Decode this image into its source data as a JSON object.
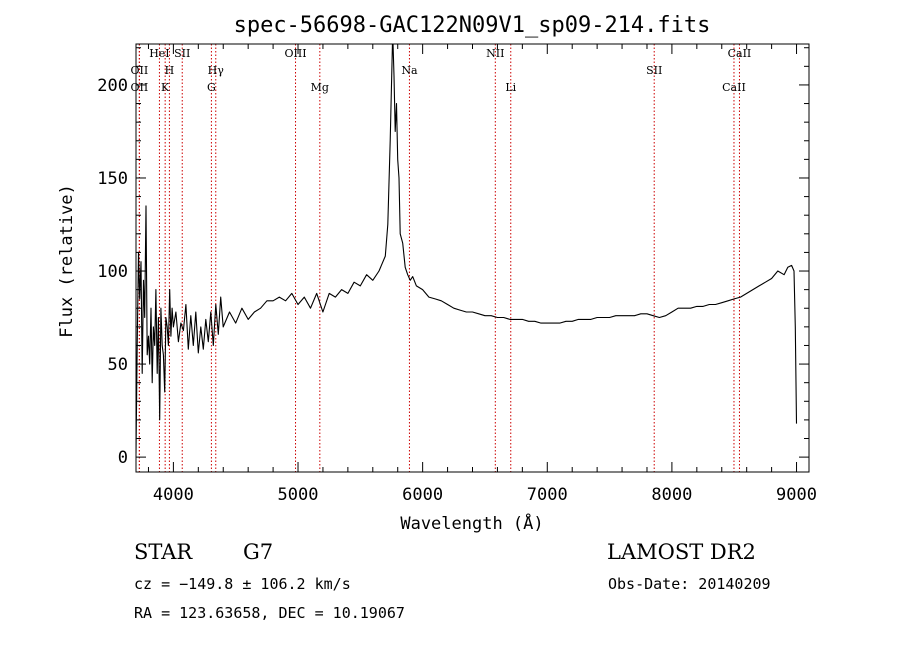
{
  "chart_data": {
    "type": "line",
    "title": "spec-56698-GAC122N09V1_sp09-214.fits",
    "xlabel": "Wavelength (Å)",
    "ylabel": "Flux (relative)",
    "xlim": [
      3700,
      9100
    ],
    "ylim": [
      -8,
      222
    ],
    "xticks": [
      4000,
      5000,
      6000,
      7000,
      8000,
      9000
    ],
    "yticks": [
      0,
      50,
      100,
      150,
      200
    ],
    "grid": false,
    "series": [
      {
        "x": [
          3700,
          3710,
          3720,
          3730,
          3740,
          3750,
          3760,
          3770,
          3780,
          3790,
          3800,
          3810,
          3820,
          3830,
          3840,
          3850,
          3860,
          3870,
          3880,
          3890,
          3900,
          3910,
          3920,
          3930,
          3940,
          3950,
          3960,
          3970,
          3980,
          3990,
          4000,
          4020,
          4040,
          4060,
          4080,
          4100,
          4120,
          4140,
          4160,
          4180,
          4200,
          4220,
          4240,
          4260,
          4280,
          4300,
          4320,
          4340,
          4360,
          4380,
          4400,
          4450,
          4500,
          4550,
          4600,
          4650,
          4700,
          4750,
          4800,
          4850,
          4900,
          4950,
          5000,
          5050,
          5100,
          5150,
          5200,
          5250,
          5300,
          5350,
          5400,
          5450,
          5500,
          5550,
          5600,
          5650,
          5700,
          5720,
          5740,
          5760,
          5770,
          5780,
          5790,
          5800,
          5810,
          5820,
          5840,
          5860,
          5880,
          5900,
          5920,
          5950,
          6000,
          6050,
          6100,
          6150,
          6200,
          6250,
          6300,
          6350,
          6400,
          6450,
          6500,
          6550,
          6600,
          6650,
          6700,
          6750,
          6800,
          6850,
          6900,
          6950,
          7000,
          7050,
          7100,
          7150,
          7200,
          7250,
          7300,
          7350,
          7400,
          7450,
          7500,
          7550,
          7600,
          7650,
          7700,
          7750,
          7800,
          7850,
          7900,
          7950,
          8000,
          8050,
          8100,
          8150,
          8200,
          8250,
          8300,
          8350,
          8400,
          8450,
          8500,
          8550,
          8600,
          8650,
          8700,
          8750,
          8800,
          8850,
          8900,
          8930,
          8960,
          8980,
          8990,
          9000
        ],
        "y": [
          2,
          60,
          110,
          85,
          105,
          45,
          95,
          75,
          135,
          55,
          65,
          50,
          80,
          40,
          70,
          60,
          90,
          45,
          75,
          20,
          80,
          60,
          55,
          35,
          75,
          70,
          60,
          90,
          65,
          80,
          70,
          78,
          62,
          72,
          68,
          82,
          58,
          76,
          60,
          78,
          56,
          70,
          58,
          74,
          62,
          78,
          60,
          82,
          66,
          86,
          70,
          78,
          72,
          80,
          74,
          78,
          80,
          84,
          84,
          86,
          84,
          88,
          82,
          86,
          80,
          88,
          78,
          88,
          86,
          90,
          88,
          94,
          92,
          98,
          95,
          100,
          108,
          125,
          170,
          228,
          205,
          175,
          190,
          160,
          150,
          120,
          115,
          102,
          98,
          95,
          97,
          92,
          90,
          86,
          85,
          84,
          82,
          80,
          79,
          78,
          78,
          77,
          76,
          76,
          75,
          75,
          74,
          74,
          74,
          73,
          73,
          72,
          72,
          72,
          72,
          73,
          73,
          74,
          74,
          74,
          75,
          75,
          75,
          76,
          76,
          76,
          76,
          77,
          77,
          76,
          75,
          76,
          78,
          80,
          80,
          80,
          81,
          81,
          82,
          82,
          83,
          84,
          85,
          86,
          88,
          90,
          92,
          94,
          96,
          100,
          98,
          102,
          103,
          100,
          70,
          18
        ]
      }
    ],
    "lines": [
      {
        "label": "OII",
        "x": 3727,
        "row": 1
      },
      {
        "label": "OII",
        "x": 3727,
        "row": 2
      },
      {
        "label": "HeI",
        "x": 3888,
        "row": 0
      },
      {
        "label": "H",
        "x": 3968,
        "row": 1
      },
      {
        "label": "K",
        "x": 3934,
        "row": 2
      },
      {
        "label": "SII",
        "x": 4071,
        "row": 0
      },
      {
        "label": "Hγ",
        "x": 4340,
        "row": 1
      },
      {
        "label": "G",
        "x": 4305,
        "row": 2
      },
      {
        "label": "OIII",
        "x": 4980,
        "row": 0
      },
      {
        "label": "Mg",
        "x": 5175,
        "row": 2
      },
      {
        "label": "Na",
        "x": 5894,
        "row": 1
      },
      {
        "label": "NII",
        "x": 6583,
        "row": 0
      },
      {
        "label": "Li",
        "x": 6707,
        "row": 2
      },
      {
        "label": "SII",
        "x": 7858,
        "row": 1
      },
      {
        "label": "CaII",
        "x": 8542,
        "row": 0
      },
      {
        "label": "CaII",
        "x": 8498,
        "row": 2
      }
    ]
  },
  "info": {
    "class_label": "STAR",
    "subclass": "G7",
    "survey": "LAMOST DR2",
    "redshift": "cz = −149.8 ± 106.2 km/s",
    "obs_date": "Obs-Date: 20140209",
    "coords": "RA = 123.63658, DEC =  10.19067"
  }
}
